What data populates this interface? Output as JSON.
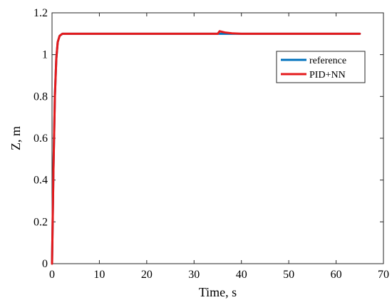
{
  "chart_data": {
    "type": "line",
    "xlabel": "Time, s",
    "ylabel": "Z, m",
    "xlim": [
      0,
      70
    ],
    "ylim": [
      0,
      1.2
    ],
    "xticks": [
      "0",
      "10",
      "20",
      "30",
      "40",
      "50",
      "60",
      "70"
    ],
    "yticks": [
      "0",
      "0.2",
      "0.4",
      "0.6",
      "0.8",
      "1",
      "1.2"
    ],
    "grid": false,
    "legend_position": "top-right",
    "series": [
      {
        "name": "reference",
        "color": "#0072BD",
        "x": [
          0,
          0.3,
          0.6,
          0.9,
          1.2,
          1.6,
          2.2,
          35,
          35.3,
          37,
          65
        ],
        "y": [
          0,
          0.45,
          0.8,
          0.98,
          1.06,
          1.09,
          1.1,
          1.1,
          1.1,
          1.1,
          1.1
        ]
      },
      {
        "name": "PID+NN",
        "color": "#E41A1C",
        "x": [
          0,
          0.3,
          0.6,
          0.9,
          1.2,
          1.6,
          2.2,
          35,
          35.4,
          36.5,
          38,
          40,
          65
        ],
        "y": [
          0,
          0.45,
          0.8,
          0.98,
          1.06,
          1.09,
          1.1,
          1.1,
          1.112,
          1.106,
          1.102,
          1.1,
          1.1
        ]
      }
    ]
  }
}
